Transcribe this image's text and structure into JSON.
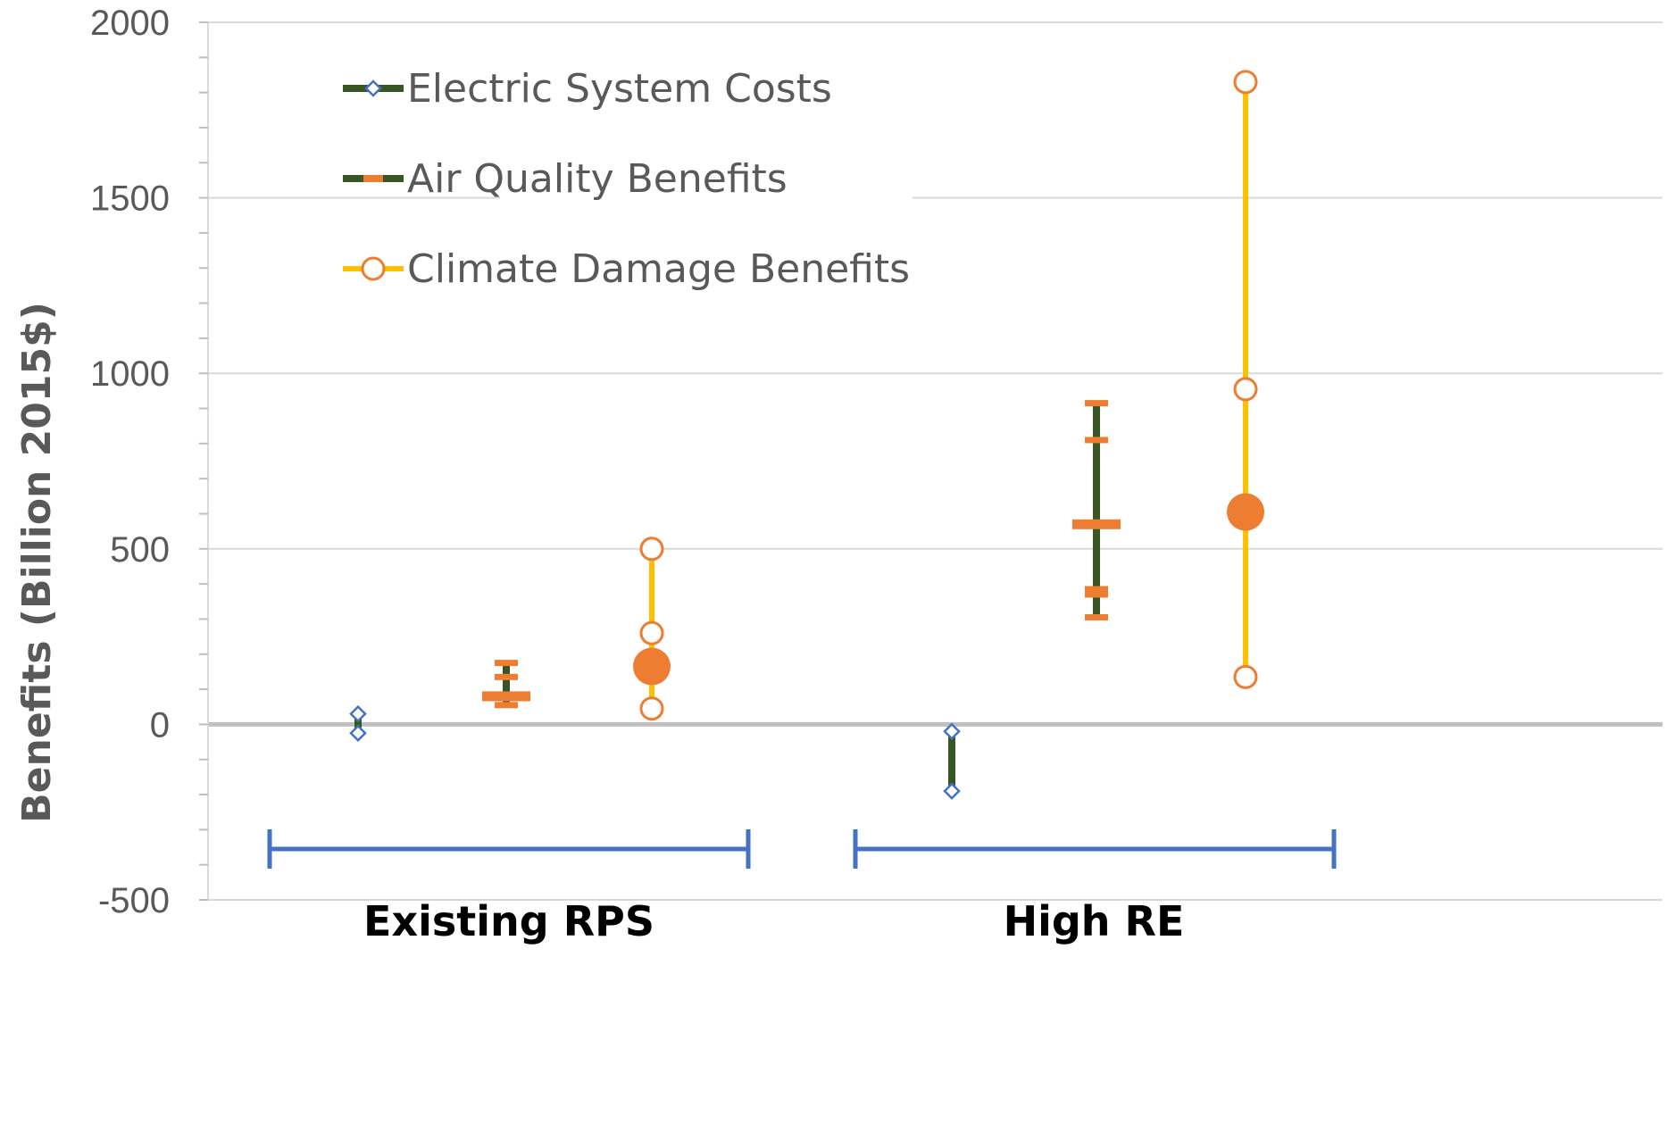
{
  "chart_data": {
    "type": "scatter",
    "title": "",
    "xlabel": "",
    "ylabel": "Benefits (Billion 2015$)",
    "ylim": [
      -500,
      2000
    ],
    "yticks": [
      -500,
      0,
      500,
      1000,
      1500,
      2000
    ],
    "minor_tick_step": 100,
    "grid": true,
    "legend_position": "top-left",
    "categories": [
      "Existing RPS",
      "High RE"
    ],
    "colors": {
      "electric_line": "#375623",
      "electric_marker": "#4472C4",
      "air_marker": "#ED7D31",
      "climate_line": "#FFC000",
      "climate_marker": "#ED7D31",
      "bracket": "#4472C4",
      "grid": "#D9D9D9",
      "zero_line": "#BFBFBF"
    },
    "series": [
      {
        "key": "electric",
        "name": "Electric System Costs",
        "marker": "diamond",
        "groups": [
          {
            "category": "Existing RPS",
            "low": -25,
            "high": 30,
            "points": [
              -25,
              30
            ],
            "central": null
          },
          {
            "category": "High RE",
            "low": -190,
            "high": -20,
            "points": [
              -190,
              -20
            ],
            "central": null
          }
        ]
      },
      {
        "key": "air",
        "name": "Air Quality Benefits",
        "marker": "dash",
        "groups": [
          {
            "category": "Existing RPS",
            "low": 50,
            "high": 175,
            "points": [
              55,
              135,
              175
            ],
            "central": 80
          },
          {
            "category": "High RE",
            "low": 305,
            "high": 920,
            "points": [
              305,
              370,
              385,
              810,
              915
            ],
            "central": 570
          }
        ]
      },
      {
        "key": "climate",
        "name": "Climate Damage Benefits",
        "marker": "circle",
        "groups": [
          {
            "category": "Existing RPS",
            "low": 45,
            "high": 500,
            "points": [
              45,
              260,
              500
            ],
            "central": 165
          },
          {
            "category": "High RE",
            "low": 135,
            "high": 1830,
            "points": [
              135,
              955,
              1830
            ],
            "central": 605
          }
        ]
      }
    ]
  }
}
